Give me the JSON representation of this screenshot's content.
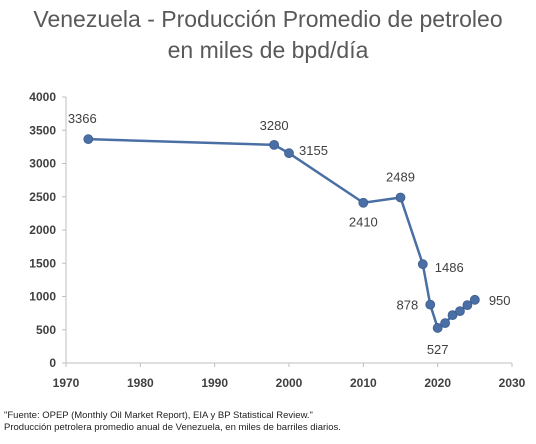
{
  "chart_data": {
    "type": "line",
    "title_lines": [
      "Venezuela - Producción Promedio de petroleo",
      "en miles de bpd/día"
    ],
    "xlabel": "",
    "ylabel": "",
    "xlim": [
      1970,
      2030
    ],
    "ylim": [
      0,
      4000
    ],
    "xticks": [
      1970,
      1980,
      1990,
      2000,
      2010,
      2020,
      2030
    ],
    "yticks": [
      0,
      500,
      1000,
      1500,
      2000,
      2500,
      3000,
      3500,
      4000
    ],
    "grid": false,
    "legend": "none",
    "series": [
      {
        "color": "#4a6fa5",
        "points": [
          {
            "x": 1973,
            "y": 3366,
            "label": "3366"
          },
          {
            "x": 1998,
            "y": 3280,
            "label": "3280"
          },
          {
            "x": 2000,
            "y": 3155,
            "label": "3155"
          },
          {
            "x": 2010,
            "y": 2410,
            "label": "2410"
          },
          {
            "x": 2015,
            "y": 2489,
            "label": "2489"
          },
          {
            "x": 2018,
            "y": 1486,
            "label": "1486"
          },
          {
            "x": 2019,
            "y": 878,
            "label": "878"
          },
          {
            "x": 2020,
            "y": 527,
            "label": "527"
          },
          {
            "x": 2021,
            "y": 600,
            "label": ""
          },
          {
            "x": 2022,
            "y": 720,
            "label": ""
          },
          {
            "x": 2023,
            "y": 780,
            "label": ""
          },
          {
            "x": 2024,
            "y": 870,
            "label": ""
          },
          {
            "x": 2025,
            "y": 950,
            "label": "950"
          }
        ]
      }
    ]
  },
  "footer": {
    "source": "\"Fuente: OPEP (Monthly Oil Market Report), EIA y BP Statistical Review.\"",
    "description": "Producción petrolera promedio anual de Venezuela, en miles de barriles diarios."
  }
}
